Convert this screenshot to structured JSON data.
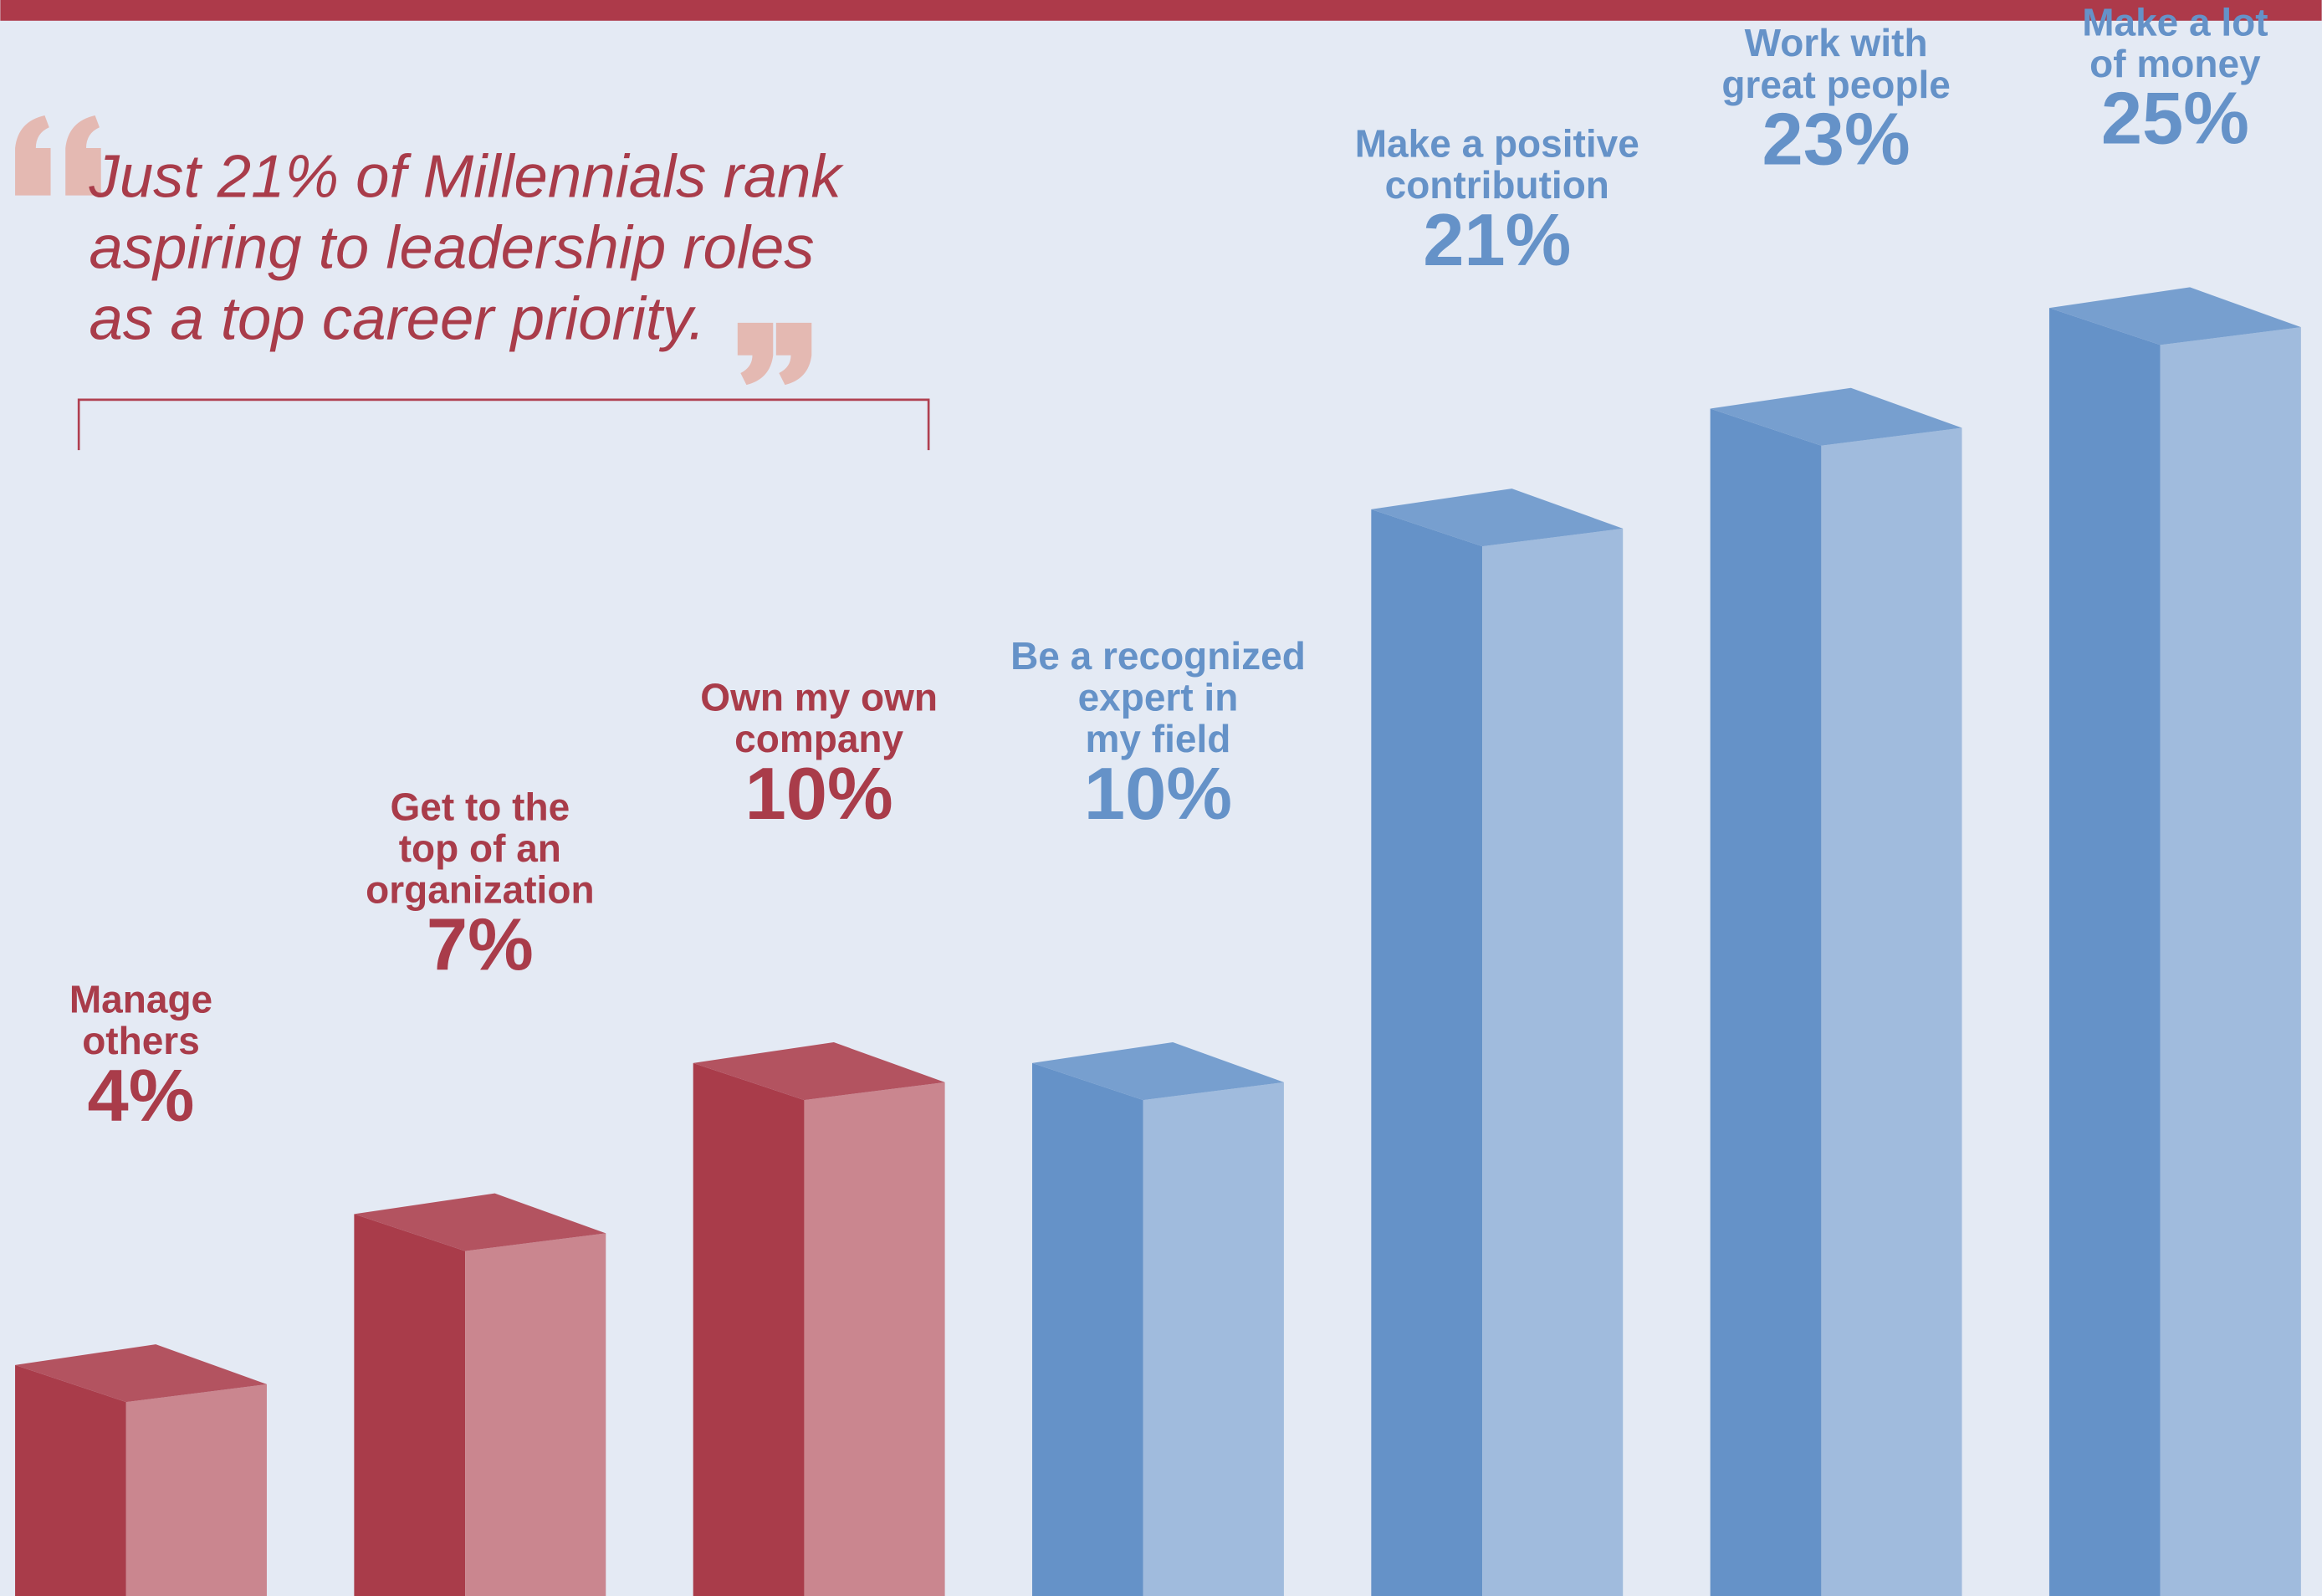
{
  "chart_data": {
    "type": "bar3d",
    "quote": "Just 21% of Millennials rank\naspiring to leadership roles\nas a top career priority.",
    "categories": [
      "Manage\nothers",
      "Get to the\ntop of an\norganization",
      "Own my own\ncompany",
      "Be a recognized\nexpert in\nmy field",
      "Make a positive\ncontribution",
      "Work with\ngreat people",
      "Make a lot\nof money"
    ],
    "values": [
      4,
      7,
      10,
      10,
      21,
      23,
      25
    ],
    "value_labels": [
      "4%",
      "7%",
      "10%",
      "10%",
      "21%",
      "23%",
      "25%"
    ],
    "colors": [
      "#a93c4a",
      "#a93c4a",
      "#a93c4a",
      "#6592c8",
      "#6592c8",
      "#6592c8",
      "#6592c8"
    ]
  }
}
